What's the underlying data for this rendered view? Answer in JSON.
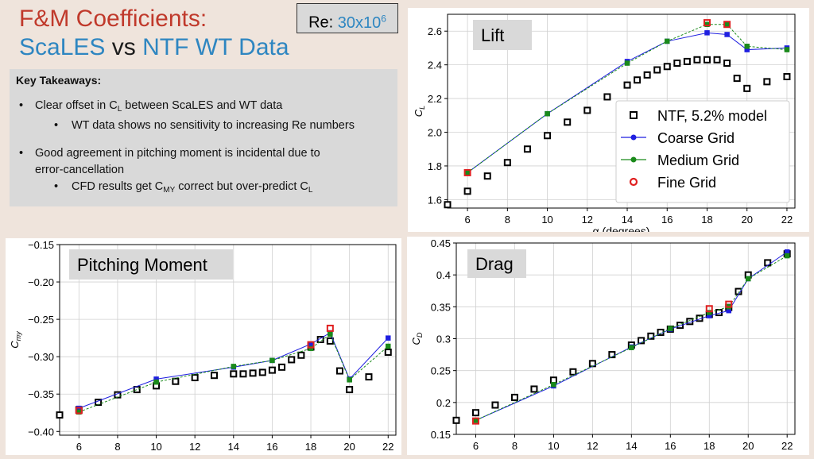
{
  "title_line1": "F&M Coefficients:",
  "title_line2_a": "ScaLES",
  "title_line2_vs": " vs ",
  "title_line2_b": "NTF WT Data",
  "re_label": "Re: ",
  "re_value": "30x10",
  "re_exp": "6",
  "takeaways": {
    "heading": "Key Takeaways:",
    "b1_pre": "Clear offset in C",
    "b1_sub": "L",
    "b1_post": " between ScaLES and WT data",
    "b1_sub1": "WT data shows no sensitivity to increasing Re numbers",
    "b2_line1": "Good agreement in pitching moment is incidental due to",
    "b2_line2": "error-cancellation",
    "b2_sub_pre": "CFD results get C",
    "b2_sub_sub1": "MY",
    "b2_sub_mid": " correct but over-predict C",
    "b2_sub_sub2": "L"
  },
  "colors": {
    "ntf": "#000000",
    "coarse": "#1f1fe0",
    "medium": "#1a8a1a",
    "fine": "#e02020"
  },
  "chart_data": [
    {
      "type": "scatter",
      "title": "Lift",
      "xlabel": "α (degrees)",
      "ylabel": "C",
      "ylabel_sub": "L",
      "xlim": [
        5,
        22.4
      ],
      "ylim": [
        1.55,
        2.7
      ],
      "xticks": [
        6,
        8,
        10,
        12,
        14,
        16,
        18,
        20,
        22
      ],
      "yticks": [
        1.6,
        1.8,
        2.0,
        2.2,
        2.4,
        2.6
      ],
      "grid": true,
      "legend_position": "lower-right",
      "legend": [
        "NTF, 5.2% model",
        "Coarse Grid",
        "Medium Grid",
        "Fine Grid"
      ],
      "series": [
        {
          "name": "NTF, 5.2% model",
          "x": [
            5,
            6,
            7,
            8,
            9,
            10,
            11,
            12,
            13,
            14,
            14.5,
            15,
            15.5,
            16,
            16.5,
            17,
            17.5,
            18,
            18.5,
            19,
            19.5,
            20,
            21,
            22
          ],
          "y": [
            1.57,
            1.65,
            1.74,
            1.82,
            1.9,
            1.98,
            2.06,
            2.13,
            2.21,
            2.28,
            2.31,
            2.34,
            2.37,
            2.39,
            2.41,
            2.42,
            2.43,
            2.43,
            2.43,
            2.41,
            2.32,
            2.26,
            2.3,
            2.33
          ]
        },
        {
          "name": "Coarse Grid",
          "x": [
            6,
            10,
            14,
            16,
            18,
            19,
            20,
            22
          ],
          "y": [
            1.76,
            2.11,
            2.42,
            2.54,
            2.59,
            2.58,
            2.49,
            2.5
          ]
        },
        {
          "name": "Medium Grid",
          "x": [
            6,
            10,
            14,
            16,
            18,
            19,
            20,
            22
          ],
          "y": [
            1.76,
            2.11,
            2.41,
            2.54,
            2.64,
            2.64,
            2.51,
            2.49
          ]
        },
        {
          "name": "Fine Grid",
          "x": [
            6,
            18,
            19
          ],
          "y": [
            1.76,
            2.65,
            2.64
          ]
        }
      ]
    },
    {
      "type": "scatter",
      "title": "Pitching Moment",
      "xlabel": "",
      "ylabel": "C",
      "ylabel_sub": "my",
      "xlim": [
        5,
        22.4
      ],
      "ylim": [
        -0.405,
        -0.15
      ],
      "xticks": [
        6,
        8,
        10,
        12,
        14,
        16,
        18,
        20,
        22
      ],
      "yticks": [
        -0.4,
        -0.35,
        -0.3,
        -0.25,
        -0.2,
        -0.15
      ],
      "ytick_labels": [
        "−0.40",
        "−0.35",
        "−0.30",
        "−0.25",
        "−0.20",
        "−0.15"
      ],
      "grid": true,
      "series": [
        {
          "name": "NTF, 5.2% model",
          "x": [
            5,
            6,
            7,
            8,
            9,
            10,
            11,
            12,
            13,
            14,
            14.5,
            15,
            15.5,
            16,
            16.5,
            17,
            17.5,
            18,
            18.5,
            19,
            19.5,
            20,
            21,
            22
          ],
          "y": [
            -0.378,
            -0.371,
            -0.361,
            -0.351,
            -0.344,
            -0.339,
            -0.333,
            -0.328,
            -0.325,
            -0.323,
            -0.323,
            -0.322,
            -0.321,
            -0.318,
            -0.314,
            -0.304,
            -0.298,
            -0.287,
            -0.277,
            -0.279,
            -0.319,
            -0.344,
            -0.327,
            -0.294
          ]
        },
        {
          "name": "Coarse Grid",
          "x": [
            6,
            10,
            14,
            16,
            18,
            19,
            20,
            22
          ],
          "y": [
            -0.369,
            -0.33,
            -0.314,
            -0.305,
            -0.283,
            -0.268,
            -0.33,
            -0.275
          ]
        },
        {
          "name": "Medium Grid",
          "x": [
            6,
            10,
            14,
            16,
            18,
            19,
            20,
            22
          ],
          "y": [
            -0.374,
            -0.334,
            -0.313,
            -0.305,
            -0.289,
            -0.27,
            -0.331,
            -0.286
          ]
        },
        {
          "name": "Fine Grid",
          "x": [
            6,
            18,
            19
          ],
          "y": [
            -0.372,
            -0.284,
            -0.262
          ]
        }
      ]
    },
    {
      "type": "scatter",
      "title": "Drag",
      "xlabel": "",
      "ylabel": "C",
      "ylabel_sub": "D",
      "xlim": [
        5,
        22.4
      ],
      "ylim": [
        0.15,
        0.45
      ],
      "xticks": [
        6,
        8,
        10,
        12,
        14,
        16,
        18,
        20,
        22
      ],
      "yticks": [
        0.15,
        0.2,
        0.25,
        0.3,
        0.35,
        0.4,
        0.45
      ],
      "grid": true,
      "series": [
        {
          "name": "NTF, 5.2% model",
          "x": [
            5,
            6,
            7,
            8,
            9,
            10,
            11,
            12,
            13,
            14,
            14.5,
            15,
            15.5,
            16,
            16.5,
            17,
            17.5,
            18,
            18.5,
            19,
            19.5,
            20,
            21,
            22
          ],
          "y": [
            0.172,
            0.184,
            0.196,
            0.208,
            0.221,
            0.235,
            0.248,
            0.261,
            0.275,
            0.29,
            0.297,
            0.304,
            0.31,
            0.315,
            0.321,
            0.327,
            0.332,
            0.338,
            0.341,
            0.349,
            0.374,
            0.4,
            0.419,
            0.433
          ]
        },
        {
          "name": "Coarse Grid",
          "x": [
            6,
            10,
            14,
            16,
            18,
            19,
            20,
            22
          ],
          "y": [
            0.172,
            0.226,
            0.287,
            0.315,
            0.336,
            0.344,
            0.394,
            0.436
          ]
        },
        {
          "name": "Medium Grid",
          "x": [
            6,
            10,
            14,
            16,
            18,
            19,
            20,
            22
          ],
          "y": [
            0.172,
            0.228,
            0.286,
            0.316,
            0.341,
            0.35,
            0.394,
            0.43
          ]
        },
        {
          "name": "Fine Grid",
          "x": [
            6,
            18,
            19
          ],
          "y": [
            0.171,
            0.347,
            0.354
          ]
        }
      ]
    }
  ]
}
